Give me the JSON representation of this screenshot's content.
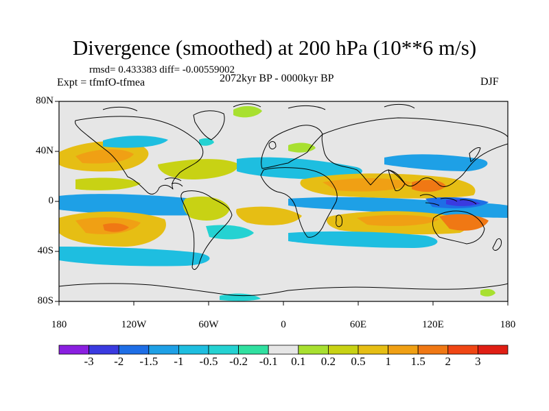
{
  "title": "Divergence (smoothed) at 200 hPa (10**6 m/s)",
  "stats": "rmsd= 0.433383  diff= -0.00559002",
  "experiment": "Expt = tfmfO-tfmea",
  "period": "2072kyr BP - 0000kyr BP",
  "season": "DJF",
  "map": {
    "lat_labels": [
      "80N",
      "40N",
      "0",
      "40S",
      "80S"
    ],
    "lon_labels": [
      "180",
      "120W",
      "60W",
      "0",
      "60E",
      "120E",
      "180"
    ]
  },
  "colorbar": {
    "labels": [
      "-3",
      "-2",
      "-1.5",
      "-1",
      "-0.5",
      "-0.2",
      "-0.1",
      "0.1",
      "0.2",
      "0.5",
      "1",
      "1.5",
      "2",
      "3"
    ],
    "colors": [
      "#8a1fe0",
      "#3a3ae0",
      "#1e6ee6",
      "#1ea0e6",
      "#1ebee0",
      "#24d2d2",
      "#30e0a0",
      "#e6e6e6",
      "#a8e030",
      "#c8d214",
      "#e6be14",
      "#f0a014",
      "#f07814",
      "#f04614",
      "#e01e14"
    ]
  }
}
